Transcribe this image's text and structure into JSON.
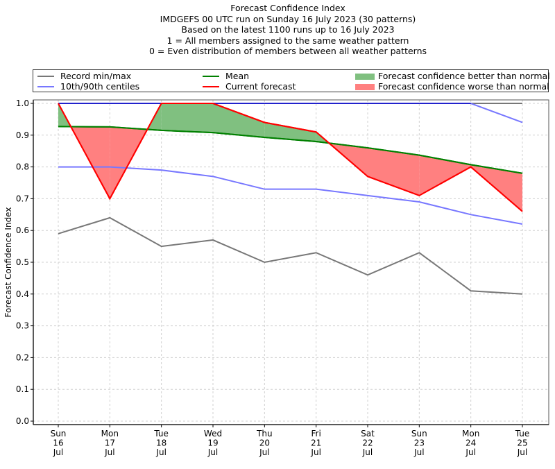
{
  "chart_data": {
    "type": "line",
    "title": "Forecast Confidence Index",
    "subtitle_lines": [
      "IMDGEFS 00 UTC run on Sunday 16 July 2023 (30 patterns)",
      "Based on the latest 1100 runs up to 16 July 2023",
      "1 = All members assigned to the same weather pattern",
      "0 = Even distribution of members between all weather patterns"
    ],
    "xlabel": "",
    "ylabel": "Forecast Confidence Index",
    "ylim": [
      0.0,
      1.0
    ],
    "yticks": [
      "0.0",
      "0.1",
      "0.2",
      "0.3",
      "0.4",
      "0.5",
      "0.6",
      "0.7",
      "0.8",
      "0.9",
      "1.0"
    ],
    "grid": true,
    "legend_position": "top",
    "categories": [
      [
        "Sun",
        "16",
        "Jul"
      ],
      [
        "Mon",
        "17",
        "Jul"
      ],
      [
        "Tue",
        "18",
        "Jul"
      ],
      [
        "Wed",
        "19",
        "Jul"
      ],
      [
        "Thu",
        "20",
        "Jul"
      ],
      [
        "Fri",
        "21",
        "Jul"
      ],
      [
        "Sat",
        "22",
        "Jul"
      ],
      [
        "Sun",
        "23",
        "Jul"
      ],
      [
        "Mon",
        "24",
        "Jul"
      ],
      [
        "Tue",
        "25",
        "Jul"
      ]
    ],
    "series": [
      {
        "name": "Record max",
        "legend": "Record min/max",
        "color": "#777777",
        "values": [
          1.0,
          1.0,
          1.0,
          1.0,
          1.0,
          1.0,
          1.0,
          1.0,
          1.0,
          1.0
        ]
      },
      {
        "name": "Record min",
        "legend": "Record min/max",
        "color": "#777777",
        "values": [
          0.59,
          0.64,
          0.55,
          0.57,
          0.5,
          0.53,
          0.46,
          0.53,
          0.41,
          0.4
        ]
      },
      {
        "name": "90th centile",
        "legend": "10th/90th centiles",
        "color": "#7777ff",
        "values": [
          1.0,
          1.0,
          1.0,
          1.0,
          1.0,
          1.0,
          1.0,
          1.0,
          1.0,
          0.94
        ]
      },
      {
        "name": "10th centile",
        "legend": "10th/90th centiles",
        "color": "#7777ff",
        "values": [
          0.8,
          0.8,
          0.79,
          0.77,
          0.73,
          0.73,
          0.71,
          0.69,
          0.65,
          0.62
        ]
      },
      {
        "name": "Mean",
        "legend": "Mean",
        "color": "#008000",
        "values": [
          0.927,
          0.926,
          0.915,
          0.908,
          0.893,
          0.88,
          0.86,
          0.837,
          0.807,
          0.78
        ]
      },
      {
        "name": "Current forecast",
        "legend": "Current forecast",
        "color": "#ff0000",
        "values": [
          1.0,
          0.7,
          1.0,
          1.0,
          0.94,
          0.91,
          0.77,
          0.71,
          0.8,
          0.66
        ]
      }
    ],
    "fills": [
      {
        "name": "Forecast confidence better than normal",
        "color": "#80c080"
      },
      {
        "name": "Forecast confidence worse than normal",
        "color": "#ff8080"
      }
    ],
    "legend": {
      "record": "Record min/max",
      "centiles": "10th/90th centiles",
      "mean": "Mean",
      "current": "Current forecast",
      "better": "Forecast confidence better than normal",
      "worse": "Forecast confidence worse than normal"
    },
    "colors": {
      "record": "#777777",
      "centiles": "#7777ff",
      "centile_top": "#2222cc",
      "mean": "#008000",
      "current": "#ff0000",
      "better": "#80c080",
      "worse": "#ff8080",
      "grid": "#d0d0d0",
      "frame": "#555555"
    }
  }
}
